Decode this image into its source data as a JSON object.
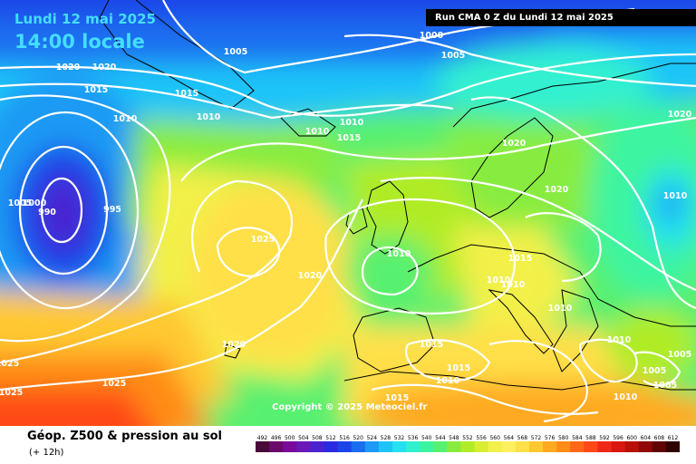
{
  "header": {
    "date": "Lundi 12 mai 2025",
    "local_time": "14:00 locale",
    "run_info": "Run CMA 0 Z du Lundi 12 mai 2025"
  },
  "map": {
    "copyright": "Copyright © 2025 Meteociel.fr",
    "pressure_labels": [
      "1020",
      "1020",
      "1005",
      "1000",
      "1005",
      "1015",
      "1015",
      "1010",
      "1010",
      "1010",
      "1010",
      "1015",
      "1020",
      "1020",
      "1010",
      "1005",
      "1000",
      "990",
      "995",
      "1025",
      "1020",
      "1010",
      "1015",
      "1010",
      "1010",
      "1010",
      "1015",
      "1015",
      "1020",
      "1010",
      "1010",
      "1005",
      "1005",
      "1005",
      "1010",
      "1015",
      "1025",
      "1025",
      "1025"
    ]
  },
  "legend": {
    "title": "Géop. Z500 & pression au sol",
    "subtitle": "(+ 12h)",
    "scale_values": [
      "492",
      "496",
      "500",
      "504",
      "508",
      "512",
      "516",
      "520",
      "524",
      "528",
      "532",
      "536",
      "540",
      "544",
      "548",
      "552",
      "556",
      "560",
      "564",
      "568",
      "572",
      "576",
      "580",
      "584",
      "588",
      "592",
      "596",
      "600",
      "604",
      "608",
      "612"
    ],
    "scale_colors": [
      "#4a0a3a",
      "#6a0a6a",
      "#7a0a9a",
      "#6a18b8",
      "#4a22d0",
      "#2a2ae0",
      "#1c44e8",
      "#1c6ef0",
      "#1c9af4",
      "#1ec4f8",
      "#24e0f0",
      "#30f0d0",
      "#3cf4a0",
      "#58f070",
      "#88ec40",
      "#b0ec28",
      "#d8ee30",
      "#f2f04a",
      "#fff060",
      "#ffe048",
      "#ffc830",
      "#ffaa20",
      "#ff8c18",
      "#ff6818",
      "#ff4818",
      "#f02818",
      "#d81810",
      "#b81008",
      "#900808",
      "#600404",
      "#300000"
    ],
    "accent_contour_color": "#ffffff",
    "low_color": "#0a1a6a",
    "high_color": "#ff4030"
  }
}
